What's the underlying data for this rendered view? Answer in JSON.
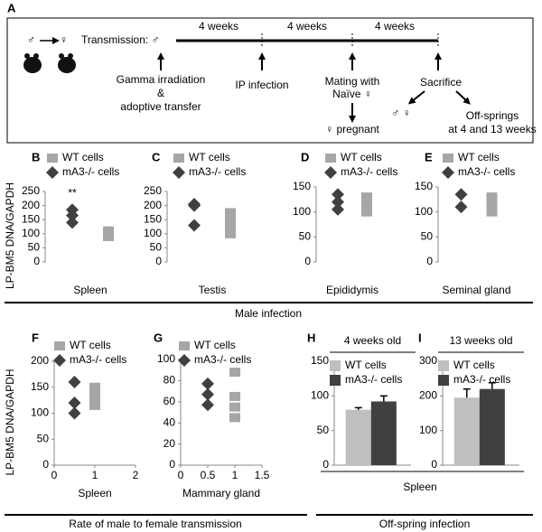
{
  "panel_a": {
    "letter": "A",
    "male": "♂",
    "female": "♀",
    "transmission": "Transmission: ♂",
    "periods": [
      "4 weeks",
      "4 weeks",
      "4 weeks"
    ],
    "step1": [
      "Gamma irradiation",
      "&",
      "adoptive transfer"
    ],
    "step2": "IP infection",
    "step3": [
      "Mating with",
      "Naïve ♀"
    ],
    "pregnant": "♀ pregnant",
    "step4": "Sacrifice",
    "parents": "♂ ♀",
    "offspring": [
      "Off-springs",
      "at 4 and 13 weeks"
    ]
  },
  "groups": [
    {
      "text": "Male infection"
    },
    {
      "text": "Rate of male to female transmission"
    },
    {
      "text": "Spleen"
    },
    {
      "text": "Off-spring infection"
    }
  ],
  "chart_data": [
    {
      "type": "strip",
      "panel": "B",
      "ylabel": "LP-BM5 DNA/GAPDH",
      "xlabel": "Spleen",
      "annotation": "**",
      "ylim": [
        0,
        250
      ],
      "yticks": [
        0,
        50,
        100,
        150,
        200,
        250
      ],
      "series": [
        {
          "name": "WT cells",
          "color": "#a6a6a6",
          "marker": "square",
          "values": [
            90,
            100,
            110
          ]
        },
        {
          "name": "mA3-/- cells",
          "color": "#404040",
          "marker": "diamond",
          "values": [
            140,
            165,
            185
          ]
        }
      ]
    },
    {
      "type": "strip",
      "panel": "C",
      "xlabel": "Testis",
      "ylim": [
        0,
        250
      ],
      "yticks": [
        0,
        50,
        100,
        150,
        200,
        250
      ],
      "series": [
        {
          "name": "WT cells",
          "color": "#a6a6a6",
          "marker": "square",
          "values": [
            100,
            125,
            150,
            175
          ]
        },
        {
          "name": "mA3-/- cells",
          "color": "#404040",
          "marker": "diamond",
          "values": [
            130,
            200,
            205
          ]
        }
      ]
    },
    {
      "type": "strip",
      "panel": "D",
      "xlabel": "Epididymis",
      "ylim": [
        0,
        150
      ],
      "yticks": [
        0,
        50,
        100,
        150
      ],
      "series": [
        {
          "name": "WT cells",
          "color": "#a6a6a6",
          "marker": "square",
          "values": [
            100,
            110,
            120,
            130
          ]
        },
        {
          "name": "mA3-/- cells",
          "color": "#404040",
          "marker": "diamond",
          "values": [
            105,
            120,
            135
          ]
        }
      ]
    },
    {
      "type": "strip",
      "panel": "E",
      "xlabel": "Seminal gland",
      "ylim": [
        0,
        150
      ],
      "yticks": [
        0,
        50,
        100,
        150
      ],
      "series": [
        {
          "name": "WT cells",
          "color": "#a6a6a6",
          "marker": "square",
          "values": [
            100,
            115,
            130
          ]
        },
        {
          "name": "mA3-/- cells",
          "color": "#404040",
          "marker": "diamond",
          "values": [
            110,
            135
          ]
        }
      ]
    },
    {
      "type": "scatter",
      "panel": "F",
      "ylabel": "LP-BM5 DNA/GAPDH",
      "xlabel": "Spleen",
      "xlim": [
        0,
        2
      ],
      "xticks": [
        0,
        1,
        2
      ],
      "ylim": [
        0,
        200
      ],
      "yticks": [
        0,
        50,
        100,
        150,
        200
      ],
      "series": [
        {
          "name": "WT cells",
          "color": "#a6a6a6",
          "marker": "square",
          "x": [
            1,
            1,
            1,
            1
          ],
          "values": [
            115,
            125,
            135,
            150
          ]
        },
        {
          "name": "mA3-/- cells",
          "color": "#404040",
          "marker": "diamond",
          "x": [
            0.5,
            0.5,
            0.5
          ],
          "values": [
            100,
            120,
            160
          ]
        }
      ]
    },
    {
      "type": "scatter",
      "panel": "G",
      "xlabel": "Mammary gland",
      "xlim": [
        0,
        1.5
      ],
      "xticks": [
        0,
        0.5,
        1,
        1.5
      ],
      "ylim": [
        0,
        100
      ],
      "yticks": [
        0,
        20,
        40,
        60,
        80,
        100
      ],
      "series": [
        {
          "name": "WT cells",
          "color": "#a6a6a6",
          "marker": "square",
          "x": [
            1,
            1,
            1,
            1
          ],
          "values": [
            45,
            55,
            65,
            88
          ]
        },
        {
          "name": "mA3-/- cells",
          "color": "#404040",
          "marker": "diamond",
          "x": [
            0.5,
            0.5,
            0.5
          ],
          "values": [
            57,
            67,
            77
          ]
        }
      ]
    },
    {
      "type": "bar",
      "panel": "H",
      "title": "4 weeks old",
      "ylim": [
        0,
        150
      ],
      "yticks": [
        0,
        50,
        100,
        150
      ],
      "series": [
        {
          "name": "WT cells",
          "color": "#bfbfbf",
          "values": [
            80
          ],
          "errors": [
            3
          ]
        },
        {
          "name": "mA3-/- cells",
          "color": "#404040",
          "values": [
            92
          ],
          "errors": [
            8
          ]
        }
      ]
    },
    {
      "type": "bar",
      "panel": "I",
      "title": "13 weeks old",
      "ylim": [
        0,
        300
      ],
      "yticks": [
        0,
        100,
        200,
        300
      ],
      "series": [
        {
          "name": "WT cells",
          "color": "#bfbfbf",
          "values": [
            195
          ],
          "errors": [
            25
          ]
        },
        {
          "name": "mA3-/- cells",
          "color": "#404040",
          "values": [
            220
          ],
          "errors": [
            18
          ]
        }
      ]
    }
  ]
}
